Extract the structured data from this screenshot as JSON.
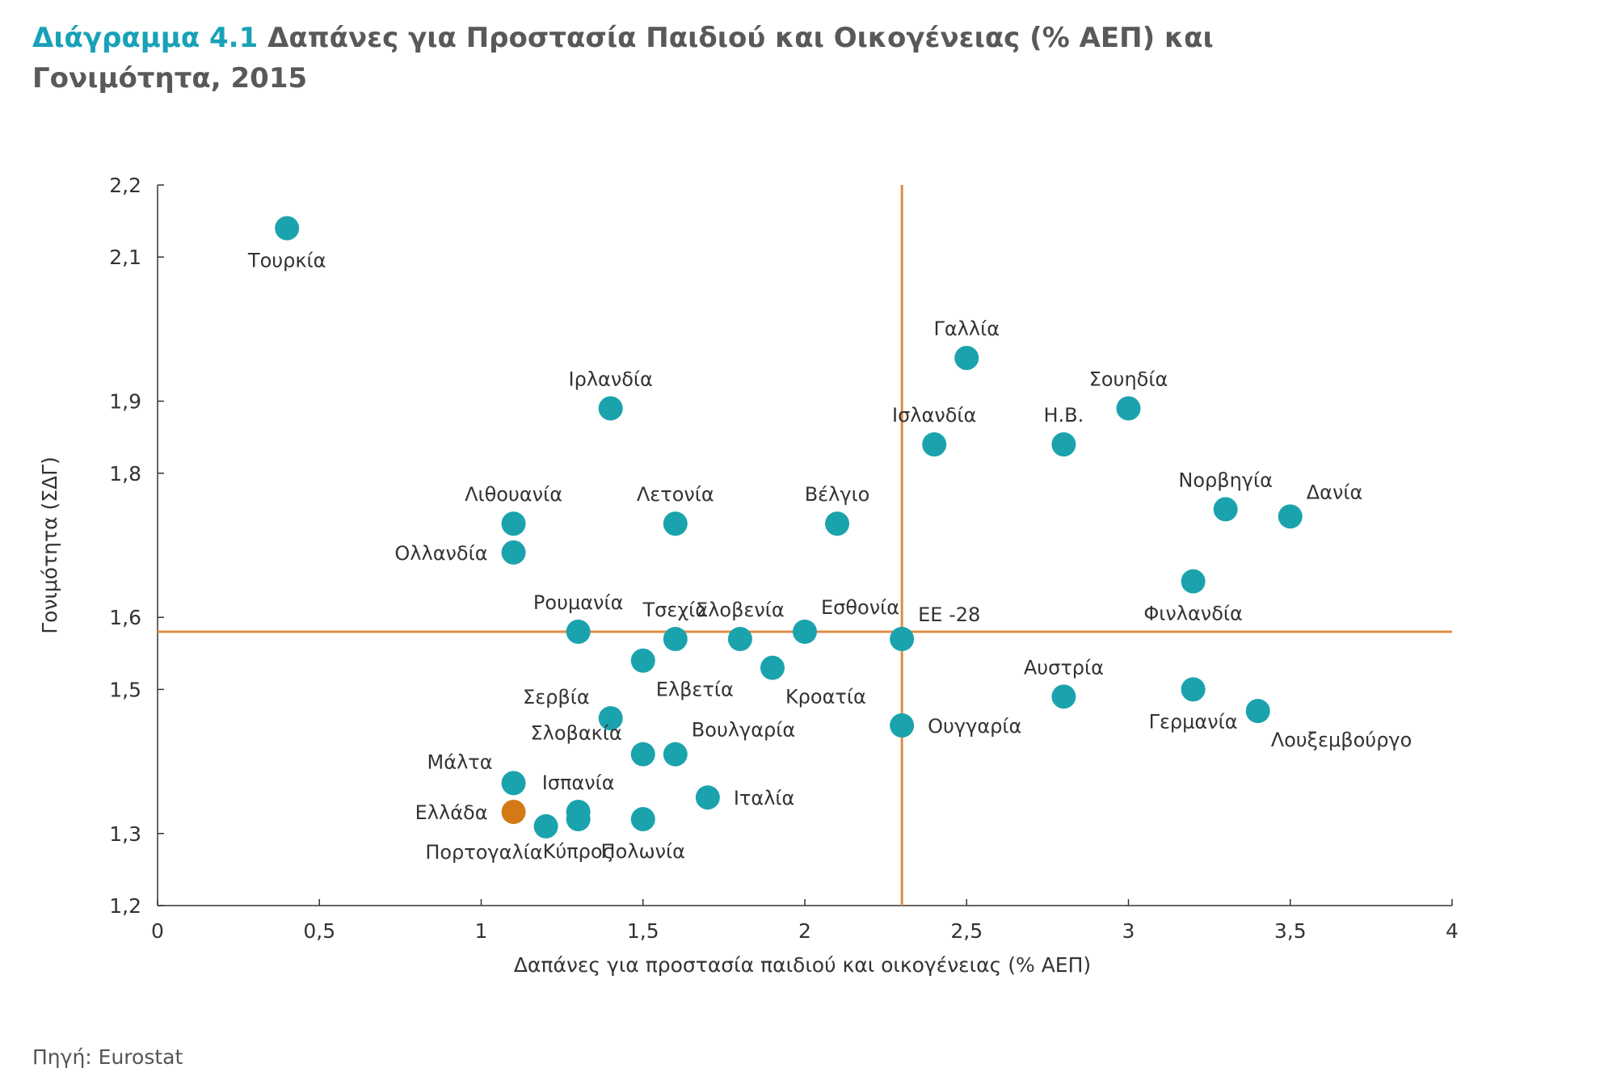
{
  "title": {
    "label": "Διάγραμμα 4.1",
    "text": "Δαπάνες για Προστασία Παιδιού και Οικογένειας (% ΑΕΠ) και Γονιμότητα, 2015"
  },
  "source": "Πηγή: Eurostat",
  "colors": {
    "point": "#1ba3ad",
    "highlight": "#d37a16",
    "reference_line": "#e08c45",
    "axis": "#333333"
  },
  "chart_data": {
    "type": "scatter",
    "xlabel": "Δαπάνες για προστασία παιδιού και οικογένειας (% ΑΕΠ)",
    "ylabel": "Γονιμότητα (ΣΔΓ)",
    "xlim": [
      0,
      4
    ],
    "ylim": [
      1.2,
      2.2
    ],
    "x_ticks": [
      0,
      0.5,
      1,
      1.5,
      2,
      2.5,
      3,
      3.5,
      4
    ],
    "x_tick_labels": [
      "0",
      "0,5",
      "1",
      "1,5",
      "2",
      "2,5",
      "3",
      "3,5",
      "4"
    ],
    "y_ticks": [
      1.2,
      1.3,
      1.5,
      1.6,
      1.8,
      1.9,
      2.1,
      2.2
    ],
    "y_tick_labels": [
      "1,2",
      "1,3",
      "1,5",
      "1,6",
      "1,8",
      "1,9",
      "2,1",
      "2,2"
    ],
    "reference_lines": {
      "x": 2.3,
      "y": 1.58
    },
    "grid": false,
    "points": [
      {
        "name": "Τουρκία",
        "x": 0.4,
        "y": 2.14,
        "label_pos": "below"
      },
      {
        "name": "Γαλλία",
        "x": 2.5,
        "y": 1.96,
        "label_pos": "above"
      },
      {
        "name": "Ιρλανδία",
        "x": 1.4,
        "y": 1.89,
        "label_pos": "above"
      },
      {
        "name": "Σουηδία",
        "x": 3.0,
        "y": 1.89,
        "label_pos": "above"
      },
      {
        "name": "Ισλανδία",
        "x": 2.4,
        "y": 1.84,
        "label_pos": "above"
      },
      {
        "name": "Η.Β.",
        "x": 2.8,
        "y": 1.84,
        "label_pos": "above"
      },
      {
        "name": "Νορβηγία",
        "x": 3.3,
        "y": 1.75,
        "label_pos": "above"
      },
      {
        "name": "Δανία",
        "x": 3.5,
        "y": 1.74,
        "label_pos": "above-right"
      },
      {
        "name": "Λιθουανία",
        "x": 1.1,
        "y": 1.73,
        "label_pos": "above"
      },
      {
        "name": "Λετονία",
        "x": 1.6,
        "y": 1.73,
        "label_pos": "above"
      },
      {
        "name": "Βέλγιο",
        "x": 2.1,
        "y": 1.73,
        "label_pos": "above"
      },
      {
        "name": "Ολλανδία",
        "x": 1.1,
        "y": 1.69,
        "label_pos": "left"
      },
      {
        "name": "Φινλανδία",
        "x": 3.2,
        "y": 1.65,
        "label_pos": "below"
      },
      {
        "name": "Ρουμανία",
        "x": 1.3,
        "y": 1.58,
        "label_pos": "above"
      },
      {
        "name": "Τσεχία",
        "x": 1.6,
        "y": 1.57,
        "label_pos": "above"
      },
      {
        "name": "Σλοβενία",
        "x": 1.8,
        "y": 1.57,
        "label_pos": "above"
      },
      {
        "name": "Εσθονία",
        "x": 2.0,
        "y": 1.58,
        "label_pos": "above-right"
      },
      {
        "name": "ΕΕ -28",
        "x": 2.3,
        "y": 1.57,
        "label_pos": "above-right"
      },
      {
        "name": "Ελβετία",
        "x": 1.5,
        "y": 1.54,
        "label_pos": "below-right"
      },
      {
        "name": "Κροατία",
        "x": 1.9,
        "y": 1.53,
        "label_pos": "below-right"
      },
      {
        "name": "Αυστρία",
        "x": 2.8,
        "y": 1.49,
        "label_pos": "above"
      },
      {
        "name": "Γερμανία",
        "x": 3.2,
        "y": 1.5,
        "label_pos": "below"
      },
      {
        "name": "Λουξεμβούργο",
        "x": 3.4,
        "y": 1.47,
        "label_pos": "below-right"
      },
      {
        "name": "Ουγγαρία",
        "x": 2.3,
        "y": 1.45,
        "label_pos": "right"
      },
      {
        "name": "Σερβία",
        "x": 1.4,
        "y": 1.46,
        "label_pos": "above-left"
      },
      {
        "name": "Σλοβακία",
        "x": 1.5,
        "y": 1.41,
        "label_pos": "above-left"
      },
      {
        "name": "Βουλγαρία",
        "x": 1.6,
        "y": 1.41,
        "label_pos": "above-right"
      },
      {
        "name": "Μάλτα",
        "x": 1.1,
        "y": 1.37,
        "label_pos": "above-left"
      },
      {
        "name": "Ισπανία",
        "x": 1.3,
        "y": 1.33,
        "label_pos": "above"
      },
      {
        "name": "Ιταλία",
        "x": 1.7,
        "y": 1.35,
        "label_pos": "right"
      },
      {
        "name": "Ελλάδα",
        "x": 1.1,
        "y": 1.33,
        "label_pos": "left",
        "highlight": true
      },
      {
        "name": "Πορτογαλία",
        "x": 1.2,
        "y": 1.31,
        "label_pos": "below-left"
      },
      {
        "name": "Κύπρος",
        "x": 1.3,
        "y": 1.32,
        "label_pos": "below"
      },
      {
        "name": "Πολωνία",
        "x": 1.5,
        "y": 1.32,
        "label_pos": "below"
      }
    ]
  }
}
